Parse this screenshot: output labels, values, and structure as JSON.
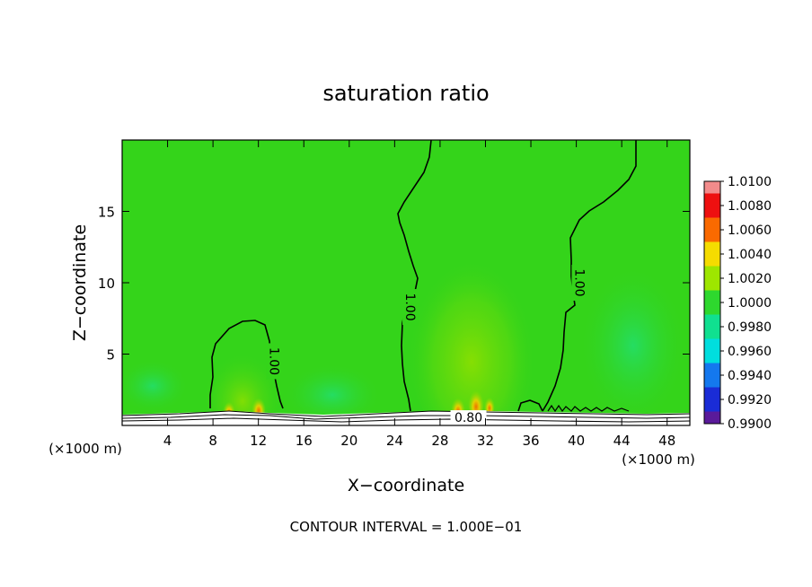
{
  "chart_data": {
    "type": "heatmap",
    "title": "saturation ratio",
    "xlabel": "X−coordinate",
    "ylabel": "Z−coordinate",
    "x_unit_left": "(×1000 m)",
    "x_unit_right": "(×1000 m)",
    "footer": "CONTOUR INTERVAL = 1.000E−01",
    "xlim": [
      0,
      50
    ],
    "ylim": [
      0,
      20
    ],
    "x_ticks": [
      4,
      8,
      12,
      16,
      20,
      24,
      28,
      32,
      36,
      40,
      44,
      48
    ],
    "y_ticks": [
      5,
      10,
      15
    ],
    "contour_labels": [
      {
        "text": "1.00",
        "x": 13.4,
        "z": 4.5
      },
      {
        "text": "1.00",
        "x": 25.4,
        "z": 8.3
      },
      {
        "text": "1.00",
        "x": 40.3,
        "z": 10.0
      },
      {
        "text": "0.80",
        "x": 30.5,
        "z": 0.5
      }
    ],
    "colorbar": {
      "levels": [
        "1.0100",
        "1.0080",
        "1.0060",
        "1.0040",
        "1.0020",
        "1.0000",
        "0.9980",
        "0.9960",
        "0.9940",
        "0.9920",
        "0.9900"
      ],
      "colors": [
        "#f28b8b",
        "#ee1010",
        "#fa6a00",
        "#f5dc00",
        "#9ee600",
        "#2ed82e",
        "#10e090",
        "#00dede",
        "#1478ee",
        "#1a2cd6",
        "#5a1a9a"
      ]
    },
    "field_colors": {
      "background": "#34d41a",
      "positive": "#8fe000",
      "strong": "#f0d000",
      "peak": "#f07000",
      "negative": "#20e07a"
    }
  }
}
